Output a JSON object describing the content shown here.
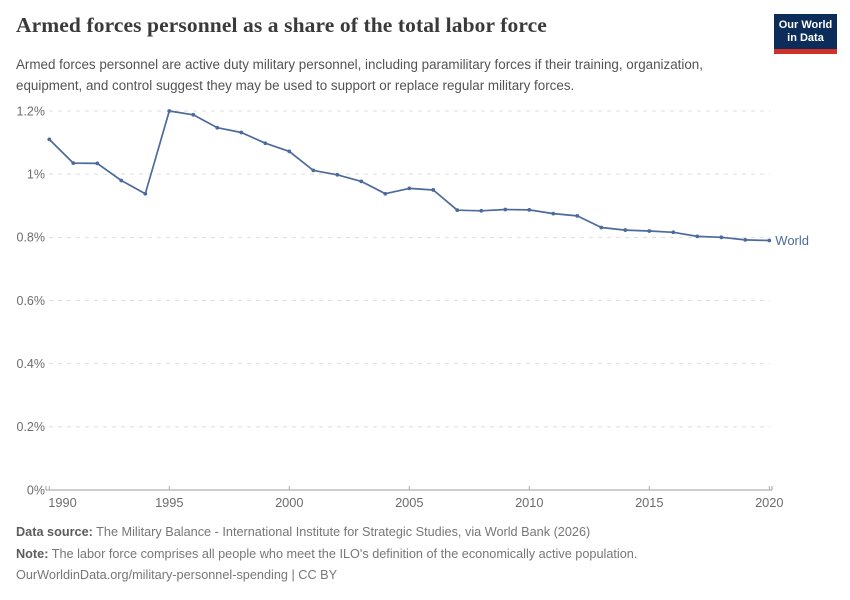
{
  "header": {
    "title": "Armed forces personnel as a share of the total labor force",
    "subtitle": "Armed forces personnel are active duty military personnel, including paramilitary forces if their training, organization, equipment, and control suggest they may be used to support or replace regular military forces.",
    "logo": {
      "line1": "Our World",
      "line2": "in Data",
      "bg_color": "#0c2d5a",
      "bar_color": "#d03128",
      "text_color": "#ffffff"
    }
  },
  "chart_data": {
    "type": "line",
    "title": "Armed forces personnel as a share of the total labor force",
    "unit": "%",
    "xlabel": "",
    "ylabel": "",
    "xlim": [
      1990,
      2020
    ],
    "ylim": [
      0,
      1.2
    ],
    "grid": "horizontal-dashed",
    "legend_position": "end-of-line-label",
    "x": [
      1990,
      1991,
      1992,
      1993,
      1994,
      1995,
      1996,
      1997,
      1998,
      1999,
      2000,
      2001,
      2002,
      2003,
      2004,
      2005,
      2006,
      2007,
      2008,
      2009,
      2010,
      2011,
      2012,
      2013,
      2014,
      2015,
      2016,
      2017,
      2018,
      2019,
      2020
    ],
    "series": [
      {
        "name": "World",
        "color": "#4c6a9c",
        "values": [
          1.11,
          1.035,
          1.034,
          0.98,
          0.938,
          1.2,
          1.188,
          1.147,
          1.132,
          1.098,
          1.072,
          1.012,
          0.998,
          0.977,
          0.938,
          0.955,
          0.95,
          0.886,
          0.884,
          0.888,
          0.887,
          0.875,
          0.868,
          0.831,
          0.823,
          0.82,
          0.816,
          0.803,
          0.8,
          0.792,
          0.79
        ]
      }
    ],
    "x_ticks": [
      1990,
      1995,
      2000,
      2005,
      2010,
      2015,
      2020
    ],
    "y_ticks": [
      {
        "value": 0,
        "label": "0%"
      },
      {
        "value": 0.2,
        "label": "0.2%"
      },
      {
        "value": 0.4,
        "label": "0.4%"
      },
      {
        "value": 0.6,
        "label": "0.6%"
      },
      {
        "value": 0.8,
        "label": "0.8%"
      },
      {
        "value": 1,
        "label": "1%"
      },
      {
        "value": 1.2,
        "label": "1.2%"
      }
    ]
  },
  "footer": {
    "source_label": "Data source:",
    "source_text": " The Military Balance - International Institute for Strategic Studies, via World Bank (2026)",
    "note_label": "Note:",
    "note_text": " The labor force comprises all people who meet the ILO's definition of the economically active population.",
    "link_text": "OurWorldinData.org/military-personnel-spending | CC BY"
  },
  "colors": {
    "line": "#4c6a9c",
    "grid": "#dedede",
    "axis": "#9e9e9e",
    "tick": "#b0b0b0",
    "tick_label": "#6d6d6d",
    "title": "#3a3a3a",
    "subtitle": "#535353",
    "footer": "#777777"
  }
}
